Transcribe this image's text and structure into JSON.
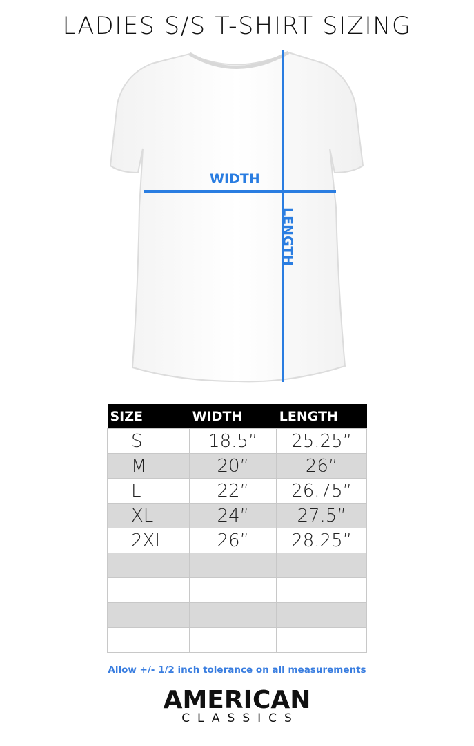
{
  "title": "LADIES S/S T-SHIRT SIZING",
  "diagram": {
    "width_label": "WIDTH",
    "length_label": "LENGTH",
    "accent_color": "#2a7de1"
  },
  "table": {
    "headers": [
      "SIZE",
      "WIDTH",
      "LENGTH"
    ],
    "rows": [
      [
        "S",
        "18.5”",
        "25.25”"
      ],
      [
        "M",
        "20”",
        "26”"
      ],
      [
        "L",
        "22”",
        "26.75”"
      ],
      [
        "XL",
        "24”",
        "27.5”"
      ],
      [
        "2XL",
        "26”",
        "28.25”"
      ],
      [
        "",
        "",
        ""
      ],
      [
        "",
        "",
        ""
      ],
      [
        "",
        "",
        ""
      ],
      [
        "",
        "",
        ""
      ]
    ]
  },
  "note": "Allow +/- 1/2 inch tolerance on all measurements",
  "logo": {
    "line1": "AMERICAN",
    "line2": "CLASSICS"
  }
}
